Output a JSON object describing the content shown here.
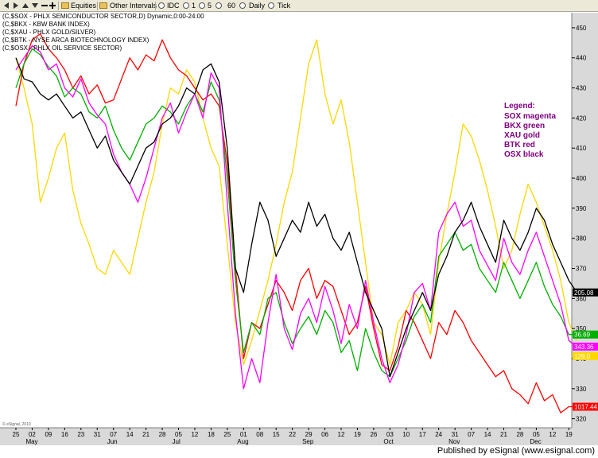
{
  "toolbar": {
    "equities_label": "Equities",
    "other_intervals_label": "Other Intervals",
    "idc_label": "IDC",
    "interval_1": "1",
    "interval_5": "5",
    "interval_60": "60",
    "daily_label": "Daily",
    "tick_label": "Tick"
  },
  "header_lines": [
    "(C,$SOX - PHLX SEMICONDUCTOR SECTOR,D) Dynamic,0:00-24:00",
    "(C,$BKX - KBW BANK INDEX)",
    "(C,$XAU - PHLX GOLD/SILVER)",
    "(C,$BTK - NYSE ARCA BIOTECHNOLOGY INDEX)",
    "(C,$OSX - PHLX OIL SERVICE SECTOR)"
  ],
  "legend": {
    "title": "Legend:",
    "lines": [
      "SOX magenta",
      "BKX green",
      "XAU gold",
      "BTK red",
      "OSX black"
    ],
    "color": "#800080"
  },
  "price_tags": [
    {
      "text": "205.08",
      "color": "#000000",
      "text_color": "#ffffff"
    },
    {
      "text": "36.69",
      "color": "#00b000",
      "text_color": "#ffffff"
    },
    {
      "text": "343.36",
      "color": "#ff00ff",
      "text_color": "#ffffff"
    },
    {
      "text": "129.0",
      "color": "#ffd700",
      "text_color": "#ffffff"
    },
    {
      "text": "1017.44",
      "color": "#ff0000",
      "text_color": "#ffffff"
    }
  ],
  "watermark": "© eSignal, 2010",
  "footer": "Published by eSignal (www.esignal.com)",
  "chart_data": {
    "type": "line",
    "y_ticks": [
      320,
      330,
      340,
      350,
      360,
      370,
      380,
      390,
      400,
      410,
      420,
      430,
      440,
      450
    ],
    "ylim": [
      317,
      455
    ],
    "grid": false,
    "legend_position": "top-right",
    "day_labels": [
      "25",
      "02",
      "09",
      "16",
      "23",
      "31",
      "07",
      "14",
      "21",
      "28",
      "05",
      "12",
      "18",
      "25",
      "01",
      "08",
      "15",
      "22",
      "29",
      "06",
      "12",
      "19",
      "26",
      "03",
      "10",
      "17",
      "24",
      "31",
      "07",
      "14",
      "21",
      "28",
      "05",
      "12",
      "19"
    ],
    "month_labels": [
      {
        "label": "May",
        "at": 1
      },
      {
        "label": "Jun",
        "at": 6
      },
      {
        "label": "Jul",
        "at": 10
      },
      {
        "label": "Aug",
        "at": 14
      },
      {
        "label": "Sep",
        "at": 18
      },
      {
        "label": "Oct",
        "at": 23
      },
      {
        "label": "Nov",
        "at": 27
      },
      {
        "label": "Dec",
        "at": 32
      }
    ],
    "x": [
      0,
      0.5,
      1,
      1.5,
      2,
      2.5,
      3,
      3.5,
      4,
      4.5,
      5,
      5.5,
      6,
      6.5,
      7,
      7.5,
      8,
      8.5,
      9,
      9.5,
      10,
      10.5,
      11,
      11.5,
      12,
      12.5,
      13,
      13.5,
      14,
      14.5,
      15,
      15.5,
      16,
      16.5,
      17,
      17.5,
      18,
      18.5,
      19,
      19.5,
      20,
      20.5,
      21,
      21.5,
      22,
      22.5,
      23,
      23.5,
      24,
      24.5,
      25,
      25.5,
      26,
      26.5,
      27,
      27.5,
      28,
      28.5,
      29,
      29.5,
      30,
      30.5,
      31,
      31.5,
      32,
      32.5,
      33,
      33.5,
      34,
      34.5
    ],
    "series": [
      {
        "name": "SOX",
        "color": "#ff00ff",
        "values": [
          436,
          440,
          444,
          442,
          436,
          438,
          430,
          427,
          433,
          425,
          421,
          418,
          408,
          402,
          398,
          392,
          400,
          410,
          420,
          425,
          415,
          422,
          428,
          420,
          435,
          430,
          392,
          355,
          330,
          340,
          332,
          352,
          368,
          350,
          343,
          355,
          360,
          352,
          364,
          356,
          345,
          358,
          350,
          366,
          352,
          340,
          332,
          338,
          348,
          362,
          365,
          356,
          382,
          388,
          392,
          384,
          386,
          376,
          371,
          366,
          380,
          372,
          368,
          376,
          382,
          374,
          366,
          358,
          346,
          344
        ]
      },
      {
        "name": "BKX",
        "color": "#00b000",
        "values": [
          430,
          438,
          443,
          441,
          437,
          434,
          427,
          430,
          428,
          422,
          420,
          424,
          416,
          410,
          406,
          412,
          418,
          420,
          424,
          422,
          418,
          424,
          428,
          422,
          432,
          426,
          400,
          366,
          342,
          352,
          348,
          360,
          362,
          352,
          345,
          350,
          354,
          348,
          356,
          352,
          342,
          346,
          336,
          350,
          342,
          336,
          334,
          340,
          346,
          354,
          358,
          352,
          374,
          378,
          382,
          376,
          378,
          370,
          366,
          362,
          372,
          366,
          360,
          366,
          372,
          364,
          358,
          354,
          348,
          348
        ]
      },
      {
        "name": "XAU",
        "color": "#ffd700",
        "values": [
          440,
          430,
          418,
          392,
          400,
          410,
          415,
          396,
          385,
          378,
          370,
          368,
          376,
          372,
          368,
          380,
          392,
          402,
          418,
          430,
          428,
          436,
          432,
          420,
          410,
          404,
          378,
          352,
          338,
          346,
          356,
          366,
          378,
          392,
          402,
          420,
          438,
          446,
          428,
          418,
          426,
          412,
          392,
          372,
          352,
          348,
          338,
          352,
          356,
          362,
          358,
          348,
          372,
          388,
          402,
          418,
          414,
          406,
          396,
          384,
          370,
          376,
          388,
          398,
          392,
          384,
          376,
          366,
          352,
          346
        ]
      },
      {
        "name": "BTK",
        "color": "#ff0000",
        "values": [
          424,
          438,
          446,
          448,
          443,
          440,
          436,
          430,
          434,
          428,
          431,
          425,
          426,
          433,
          440,
          436,
          441,
          439,
          446,
          440,
          436,
          434,
          430,
          426,
          428,
          424,
          405,
          370,
          340,
          352,
          350,
          358,
          366,
          362,
          356,
          366,
          370,
          360,
          366,
          364,
          356,
          348,
          352,
          364,
          350,
          338,
          336,
          344,
          356,
          352,
          346,
          340,
          352,
          348,
          356,
          352,
          346,
          342,
          338,
          334,
          336,
          330,
          328,
          325,
          332,
          326,
          328,
          322,
          324,
          324
        ]
      },
      {
        "name": "OSX",
        "color": "#000000",
        "values": [
          440,
          433,
          432,
          428,
          426,
          428,
          424,
          420,
          422,
          416,
          410,
          414,
          406,
          402,
          398,
          404,
          410,
          412,
          418,
          420,
          424,
          430,
          428,
          436,
          438,
          432,
          410,
          370,
          362,
          378,
          392,
          386,
          374,
          380,
          386,
          382,
          392,
          384,
          388,
          380,
          376,
          382,
          372,
          362,
          356,
          350,
          334,
          342,
          350,
          356,
          362,
          356,
          368,
          374,
          382,
          386,
          392,
          384,
          378,
          372,
          386,
          380,
          376,
          382,
          390,
          386,
          378,
          372,
          366,
          362
        ]
      }
    ]
  }
}
